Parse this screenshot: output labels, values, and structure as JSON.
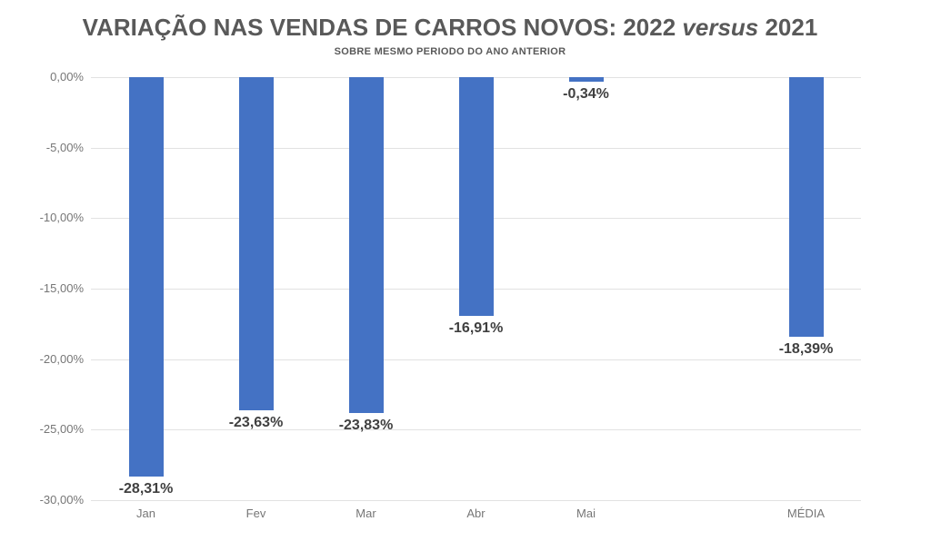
{
  "title": {
    "prefix": "VARIAÇÃO NAS VENDAS DE CARROS NOVOS: 2022 ",
    "italic": "versus",
    "suffix": " 2021"
  },
  "subtitle": "SOBRE MESMO PERIODO DO ANO ANTERIOR",
  "chart_data": {
    "type": "bar",
    "title": "VARIAÇÃO NAS VENDAS DE CARROS NOVOS: 2022 versus 2021",
    "subtitle": "SOBRE MESMO PERIODO DO ANO ANTERIOR",
    "categories": [
      "Jan",
      "Fev",
      "Mar",
      "Abr",
      "Mai",
      "",
      "MÉDIA"
    ],
    "values": [
      -28.31,
      -23.63,
      -23.83,
      -16.91,
      -0.34,
      null,
      -18.39
    ],
    "data_labels": [
      "-28,31%",
      "-23,63%",
      "-23,83%",
      "-16,91%",
      "-0,34%",
      null,
      "-18,39%"
    ],
    "xlabel": "",
    "ylabel": "",
    "ylim": [
      -30,
      0
    ],
    "y_ticks": [
      {
        "value": 0,
        "label": "0,00%"
      },
      {
        "value": -5,
        "label": "-5,00%"
      },
      {
        "value": -10,
        "label": "-10,00%"
      },
      {
        "value": -15,
        "label": "-15,00%"
      },
      {
        "value": -20,
        "label": "-20,00%"
      },
      {
        "value": -25,
        "label": "-25,00%"
      },
      {
        "value": -30,
        "label": "-30,00%"
      }
    ],
    "grid": true,
    "legend": false,
    "bar_color": "#4472C4"
  },
  "colors": {
    "bar": "#4472C4",
    "gridline": "#e2e2e2",
    "title_text": "#595959",
    "axis_text": "#767676",
    "data_label_text": "#404040",
    "background": "#ffffff"
  }
}
